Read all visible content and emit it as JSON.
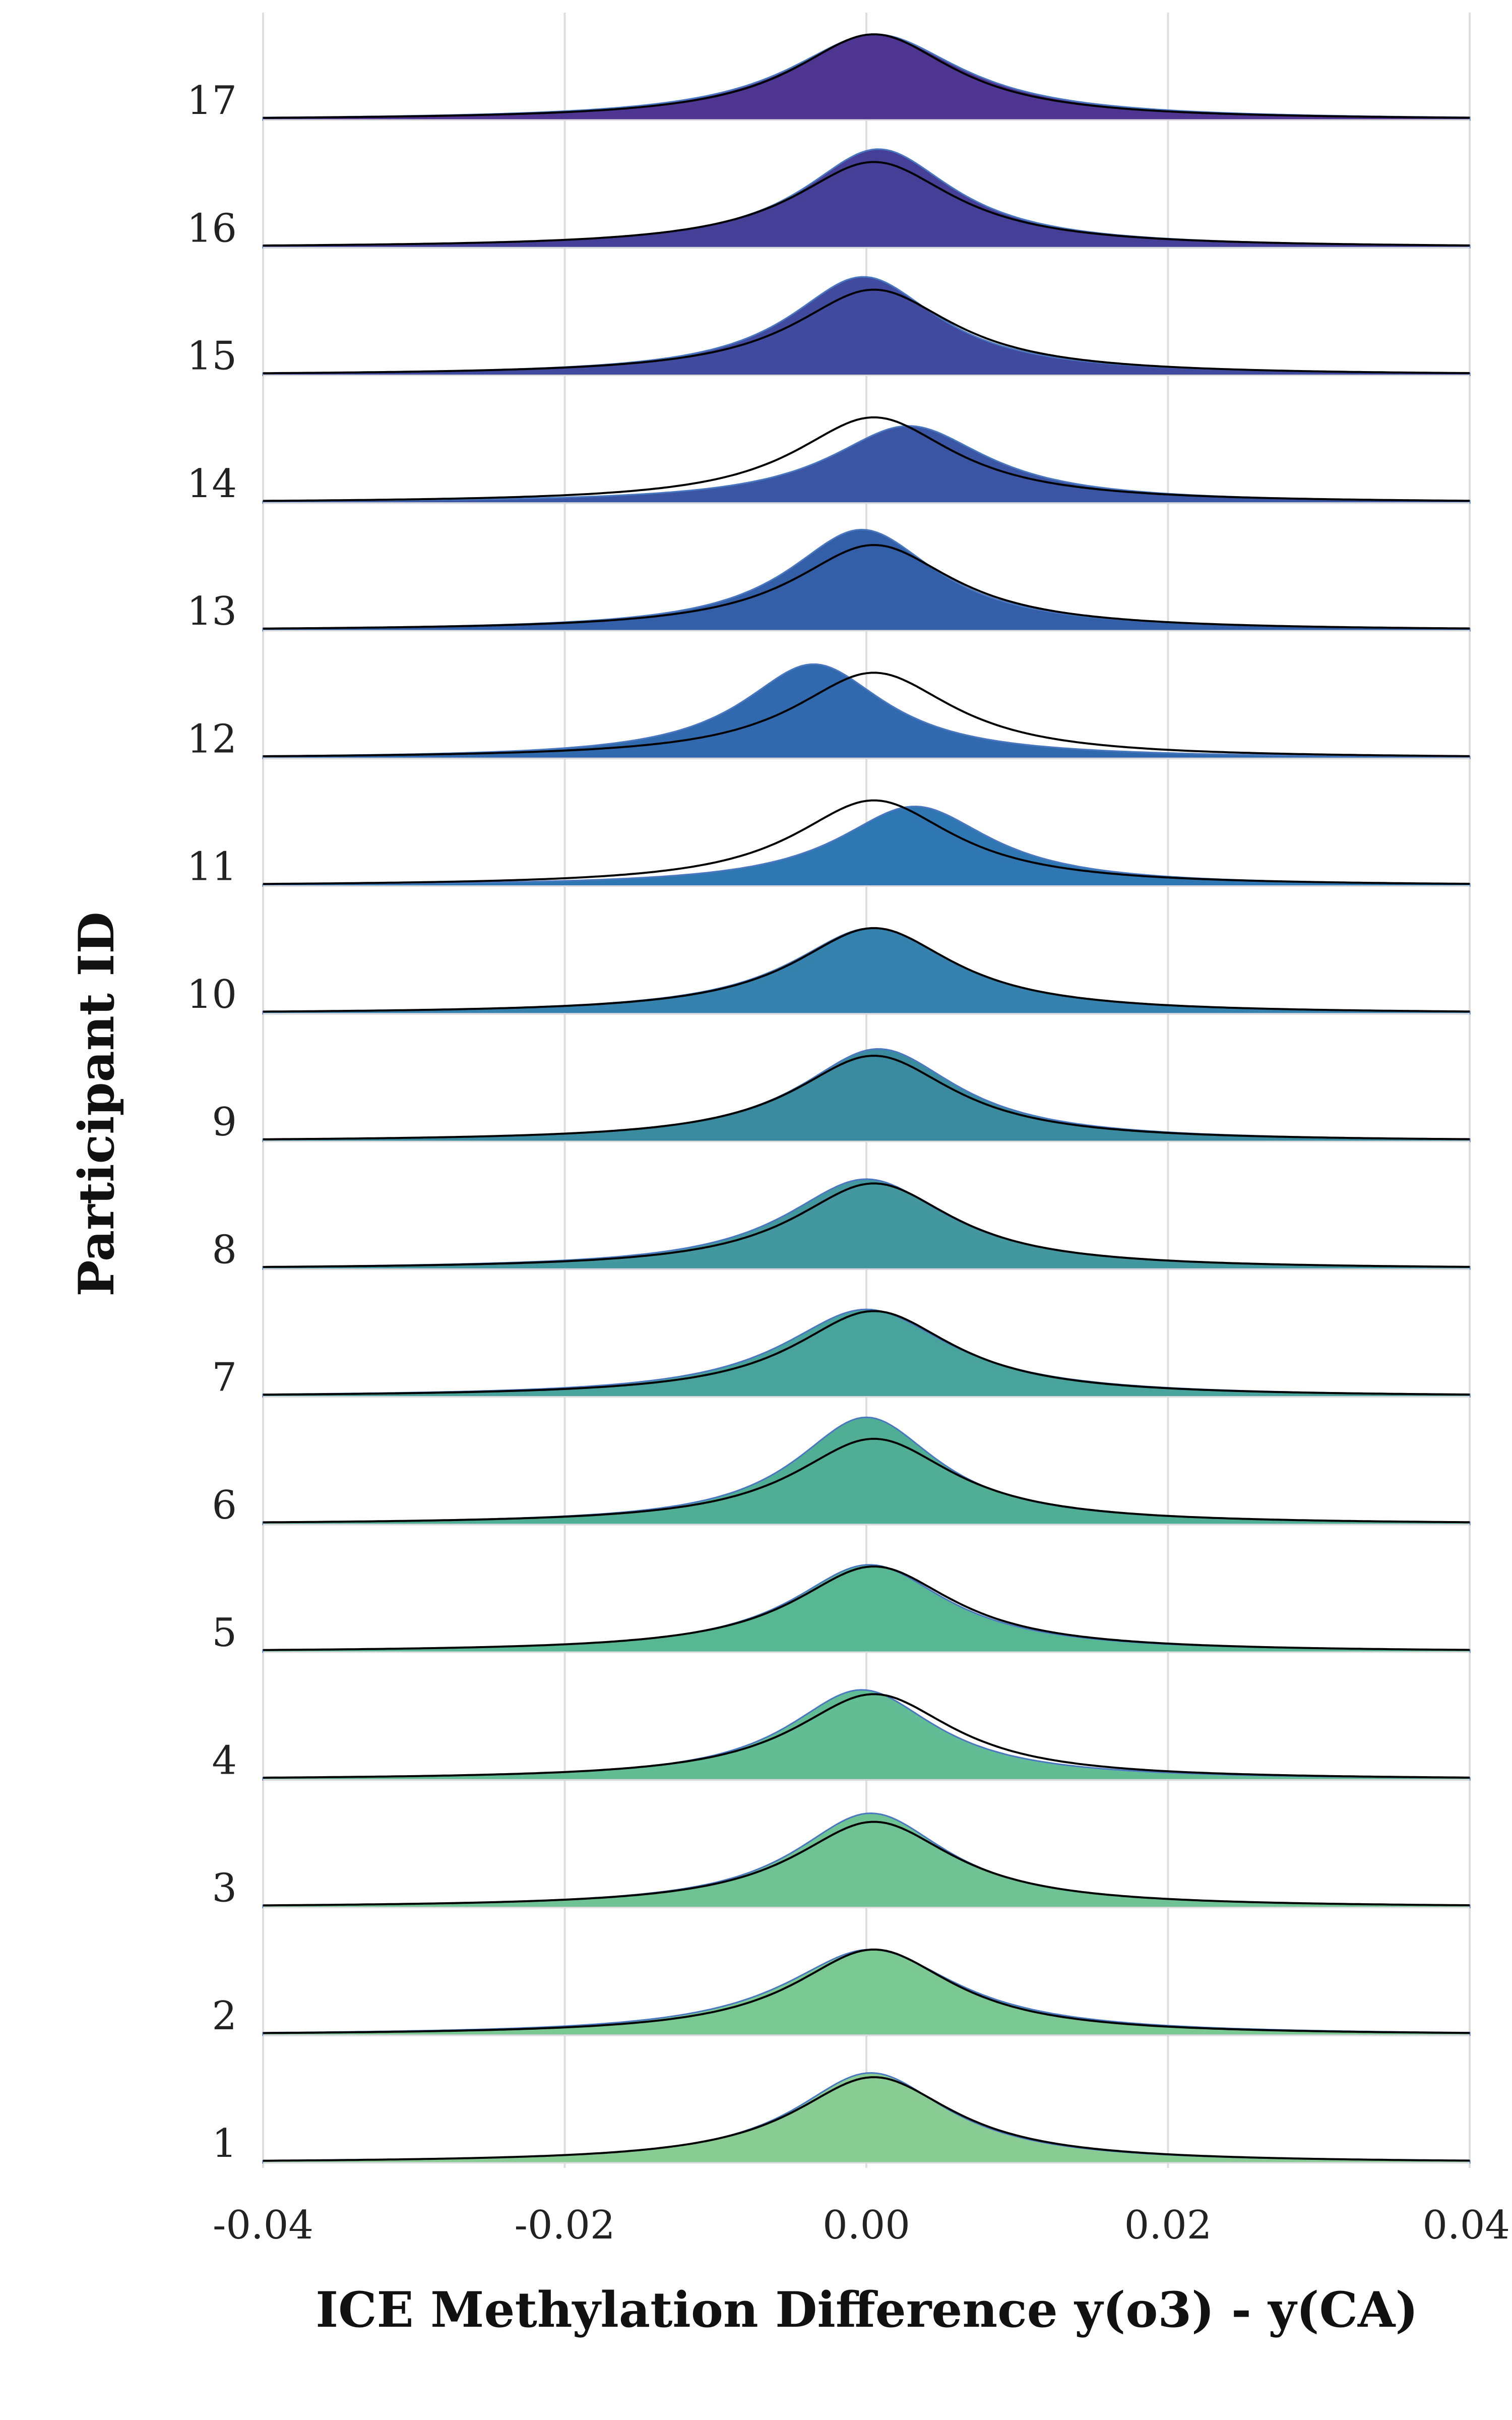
{
  "chart_data": {
    "type": "area",
    "subtype": "ridgeline",
    "xlabel": "ICE Methylation Difference y(o3) - y(CA)",
    "ylabel": "Participant ID",
    "xlim": [
      -0.04,
      0.04
    ],
    "x_ticks": [
      "-0.04",
      "-0.02",
      "0.00",
      "0.02",
      "0.04"
    ],
    "grid": "vertical",
    "reference_curve": {
      "center": 0.0005,
      "width": 0.0065,
      "stroke": "#000000"
    },
    "series": [
      {
        "id": "1",
        "label": "1",
        "peak": 0.0003,
        "width": 0.0062,
        "height": 1.05,
        "color": "#88cc93"
      },
      {
        "id": "2",
        "label": "2",
        "peak": 0.0003,
        "width": 0.007,
        "height": 1.0,
        "color": "#7ac892"
      },
      {
        "id": "3",
        "label": "3",
        "peak": 0.0003,
        "width": 0.0062,
        "height": 1.1,
        "color": "#6ec293"
      },
      {
        "id": "4",
        "label": "4",
        "peak": -0.0003,
        "width": 0.006,
        "height": 1.05,
        "color": "#63bd94"
      },
      {
        "id": "5",
        "label": "5",
        "peak": 0.0002,
        "width": 0.0063,
        "height": 1.02,
        "color": "#58b793"
      },
      {
        "id": "6",
        "label": "6",
        "peak": 0.0,
        "width": 0.0058,
        "height": 1.25,
        "color": "#4fae93"
      },
      {
        "id": "7",
        "label": "7",
        "peak": 0.0,
        "width": 0.0068,
        "height": 1.02,
        "color": "#48a39c"
      },
      {
        "id": "8",
        "label": "8",
        "peak": 0.0,
        "width": 0.0066,
        "height": 1.05,
        "color": "#43979f"
      },
      {
        "id": "9",
        "label": "9",
        "peak": 0.0008,
        "width": 0.0064,
        "height": 1.08,
        "color": "#3b8ba0"
      },
      {
        "id": "10",
        "label": "10",
        "peak": 0.0004,
        "width": 0.0066,
        "height": 1.0,
        "color": "#3682ae"
      },
      {
        "id": "11",
        "label": "11",
        "peak": 0.0032,
        "width": 0.0062,
        "height": 0.93,
        "color": "#2e77b2"
      },
      {
        "id": "12",
        "label": "12",
        "peak": -0.0035,
        "width": 0.0058,
        "height": 1.1,
        "color": "#3069ad"
      },
      {
        "id": "13",
        "label": "13",
        "peak": -0.0003,
        "width": 0.006,
        "height": 1.18,
        "color": "#335ea8"
      },
      {
        "id": "14",
        "label": "14",
        "peak": 0.0028,
        "width": 0.0064,
        "height": 0.9,
        "color": "#3a55a3"
      },
      {
        "id": "15",
        "label": "15",
        "peak": -0.0002,
        "width": 0.006,
        "height": 1.15,
        "color": "#404a9e"
      },
      {
        "id": "16",
        "label": "16",
        "peak": 0.0008,
        "width": 0.0061,
        "height": 1.15,
        "color": "#453f98"
      },
      {
        "id": "17",
        "label": "17",
        "peak": 0.0006,
        "width": 0.007,
        "height": 1.0,
        "color": "#4e3592"
      }
    ]
  }
}
